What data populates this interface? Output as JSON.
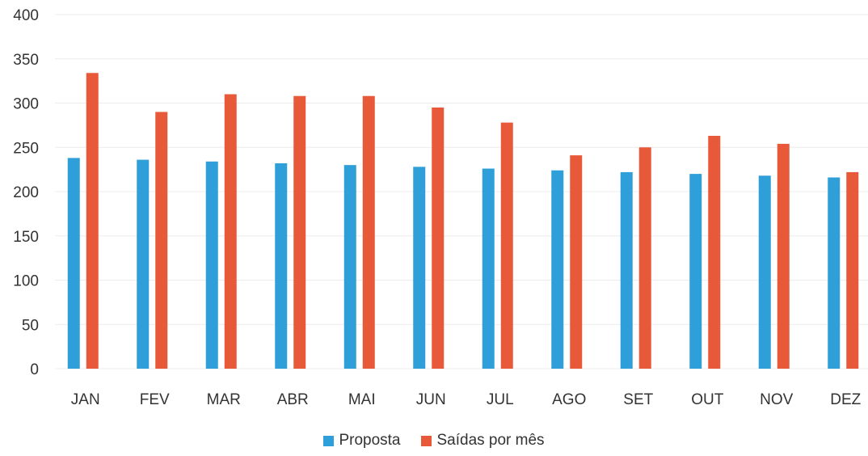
{
  "chart_data": {
    "type": "bar",
    "categories": [
      "JAN",
      "FEV",
      "MAR",
      "ABR",
      "MAI",
      "JUN",
      "JUL",
      "AGO",
      "SET",
      "OUT",
      "NOV",
      "DEZ"
    ],
    "series": [
      {
        "name": "Proposta",
        "color": "#2E9FD8",
        "values": [
          238,
          236,
          234,
          232,
          230,
          228,
          226,
          224,
          222,
          220,
          218,
          216
        ]
      },
      {
        "name": "Saídas por mês",
        "color": "#E8593A",
        "values": [
          334,
          290,
          310,
          308,
          308,
          295,
          278,
          241,
          250,
          263,
          254,
          222
        ]
      }
    ],
    "y_ticks": [
      "400",
      "350",
      "300",
      "250",
      "200",
      "150",
      "100",
      "50",
      "0"
    ],
    "ylim": [
      0,
      400
    ],
    "grid": true,
    "legend_position": "bottom",
    "title": "",
    "xlabel": "",
    "ylabel": ""
  }
}
